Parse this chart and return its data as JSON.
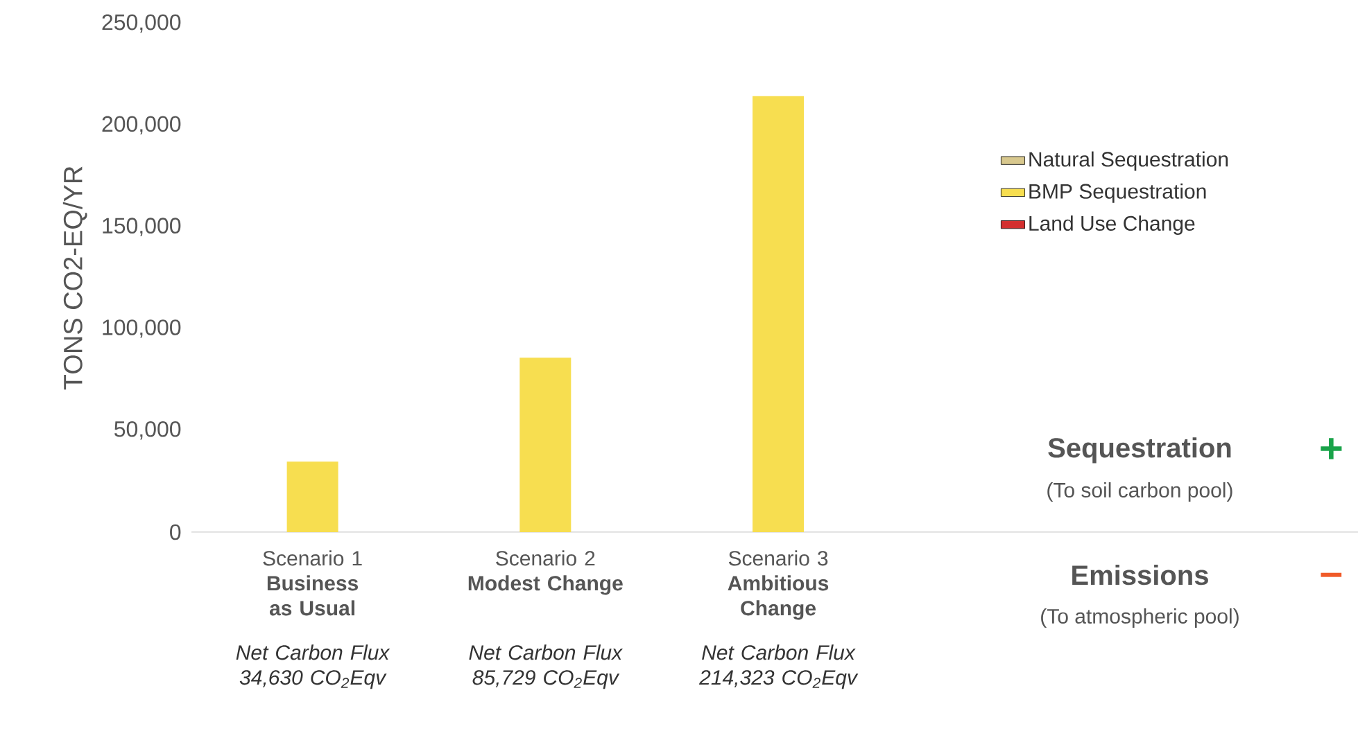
{
  "chart_data": {
    "type": "bar",
    "ylabel": "TONS CO2-EQ/YR",
    "categories": [
      "Scenario 1 **Business as Usual**",
      "Scenario 2 **Modest Change**",
      "Scenario 3 **Ambitious Change**"
    ],
    "series": [
      {
        "name": "Natural Sequestration",
        "color": "#d8c88e",
        "values": [
          null,
          null,
          null
        ]
      },
      {
        "name": "BMP Sequestration",
        "color": "#f7de50",
        "values": [
          34630,
          85729,
          214323
        ]
      },
      {
        "name": "Land Use Change",
        "color": "#d32f2f",
        "values": [
          null,
          null,
          null
        ]
      }
    ],
    "ylim": [
      0,
      250000
    ],
    "yticks": [
      {
        "value": 0,
        "label": "0"
      },
      {
        "value": 50000,
        "label": "50,000"
      },
      {
        "value": 100000,
        "label": "100,000"
      },
      {
        "value": 150000,
        "label": "150,000"
      },
      {
        "value": 200000,
        "label": "200,000"
      },
      {
        "value": 250000,
        "label": "250,000"
      }
    ],
    "legend": "right",
    "grid": false,
    "annotations": [
      "Net Carbon Flux 34,630 CO$_{2}$Eqv",
      "Net Carbon Flux 85,729 CO$_{2}$Eqv",
      "Net Carbon Flux 214,323 CO$_{2}$Eqv",
      "Sequestration",
      "(To soil carbon pool)",
      "+",
      "Emissions",
      "(To atmospheric pool)",
      "–"
    ]
  }
}
